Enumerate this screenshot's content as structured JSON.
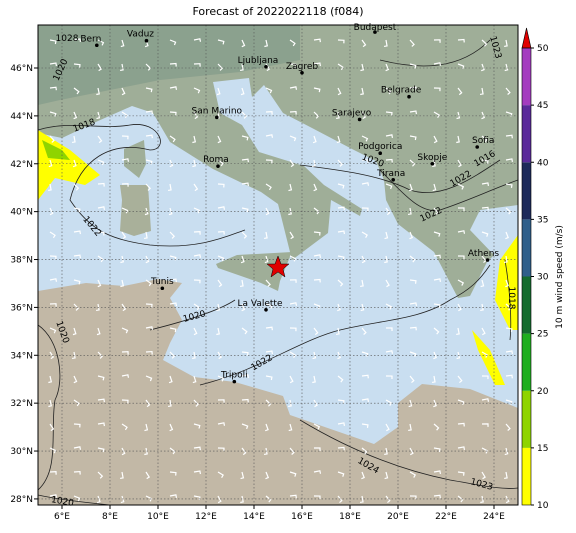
{
  "title": "Forecast of 2022022118 (f084)",
  "lat_ticks": [
    {
      "value": 28,
      "label": "28°N"
    },
    {
      "value": 30,
      "label": "30°N"
    },
    {
      "value": 32,
      "label": "32°N"
    },
    {
      "value": 34,
      "label": "34°N"
    },
    {
      "value": 36,
      "label": "36°N"
    },
    {
      "value": 38,
      "label": "38°N"
    },
    {
      "value": 40,
      "label": "40°N"
    },
    {
      "value": 42,
      "label": "42°N"
    },
    {
      "value": 44,
      "label": "44°N"
    },
    {
      "value": 46,
      "label": "46°N"
    }
  ],
  "lon_ticks": [
    {
      "value": 6,
      "label": "6°E"
    },
    {
      "value": 8,
      "label": "8°E"
    },
    {
      "value": 10,
      "label": "10°E"
    },
    {
      "value": 12,
      "label": "12°E"
    },
    {
      "value": 14,
      "label": "14°E"
    },
    {
      "value": 16,
      "label": "16°E"
    },
    {
      "value": 18,
      "label": "18°E"
    },
    {
      "value": 20,
      "label": "20°E"
    },
    {
      "value": 22,
      "label": "22°E"
    },
    {
      "value": 24,
      "label": "24°E"
    }
  ],
  "cities": [
    "Bern",
    "Vaduz",
    "Budapest",
    "Ljubljana",
    "Zagreb",
    "Belgrade",
    "San Marino",
    "Sarajevo",
    "Podgorica",
    "Sofia",
    "Skopje",
    "Tirana",
    "Roma",
    "Tunis",
    "La Valette",
    "Athens",
    "Tripoli"
  ],
  "isobar_labels": [
    "1028",
    "1023",
    "1020",
    "1018",
    "1022",
    "1020",
    "1020",
    "1022",
    "1024",
    "1023",
    "1020",
    "1018",
    "1020",
    "1022",
    "1022",
    "1016"
  ],
  "colorbar": {
    "label": "10 m wind speed (m/s)",
    "ticks": [
      10,
      15,
      20,
      25,
      30,
      35,
      40,
      45,
      50
    ],
    "colors": [
      "#ffff00",
      "#8fd400",
      "#1fae1f",
      "#146b2e",
      "#2f5f8a",
      "#1d2a5a",
      "#5a2a9a",
      "#a43cbf"
    ],
    "extend_color": "#e00000"
  }
}
